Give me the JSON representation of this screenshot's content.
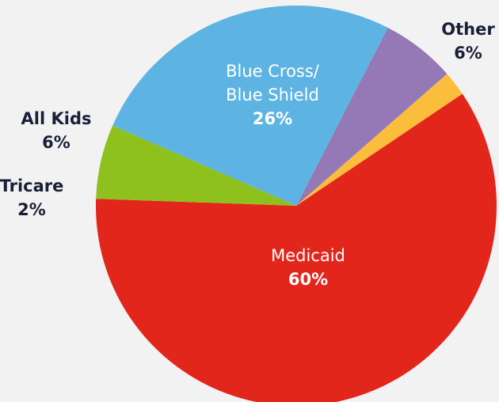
{
  "chart_data": {
    "type": "pie",
    "title": "",
    "slices": [
      {
        "label": "Medicaid",
        "lines": [
          "Medicaid"
        ],
        "percent_label": "60%",
        "value": 60,
        "color": "#e3261c",
        "label_position": "inside"
      },
      {
        "label": "Tricare",
        "lines": [
          "Tricare"
        ],
        "percent_label": "2%",
        "value": 2,
        "color": "#fbbe3c",
        "label_position": "outside"
      },
      {
        "label": "All Kids",
        "lines": [
          "All Kids"
        ],
        "percent_label": "6%",
        "value": 6,
        "color": "#9479b6",
        "label_position": "outside"
      },
      {
        "label": "Blue Cross/ Blue Shield",
        "lines": [
          "Blue Cross/",
          "Blue Shield"
        ],
        "percent_label": "26%",
        "value": 26,
        "color": "#5db4e3",
        "label_position": "inside"
      },
      {
        "label": "Other",
        "lines": [
          "Other"
        ],
        "percent_label": "6%",
        "value": 6,
        "color": "#8ec11d",
        "label_position": "outside"
      }
    ]
  }
}
